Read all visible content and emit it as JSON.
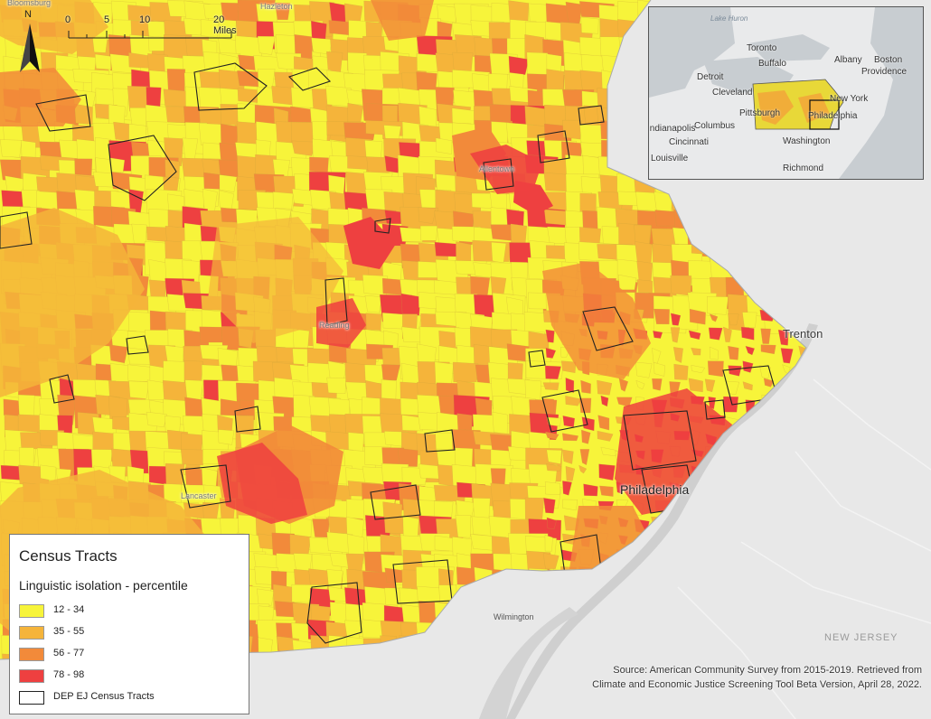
{
  "legend": {
    "title": "Census Tracts",
    "subtitle": "Linguistic isolation - percentile",
    "classes": [
      {
        "label": "12 - 34",
        "color": "#f7f43a"
      },
      {
        "label": "35 - 55",
        "color": "#f5b43a"
      },
      {
        "label": "56 - 77",
        "color": "#f28a3a"
      },
      {
        "label": "78 - 98",
        "color": "#ee4040"
      }
    ],
    "outline_label": "DEP EJ Census Tracts"
  },
  "scalebar": {
    "ticks": [
      "0",
      "5",
      "10",
      "20 Miles"
    ]
  },
  "north_arrow": {
    "label": "N",
    "icon": "north-arrow-icon"
  },
  "places": {
    "philadelphia": "Philadelphia",
    "trenton": "Trenton",
    "wilmington": "Wilmington",
    "allentown": "Allentown",
    "reading": "Reading",
    "lancaster": "Lancaster",
    "hazleton": "Hazleton",
    "bloomsburg": "Bloomsburg",
    "new_jersey": "NEW JERSEY"
  },
  "inset": {
    "labels": [
      "Toronto",
      "Buffalo",
      "Albany",
      "Boston",
      "Providence",
      "Detroit",
      "Cleveland",
      "New York",
      "Pittsburgh",
      "Philadelphia",
      "Columbus",
      "Indianapolis",
      "Cincinnati",
      "Washington",
      "Louisville",
      "Richmond"
    ],
    "lake_label": "Lake Huron"
  },
  "source": {
    "line1": "Source: American Community Survey from 2015-2019. Retrieved from",
    "line2": "Climate and Economic Justice Screening Tool Beta Version, April 28, 2022."
  },
  "colors": {
    "out_of_state": "#e8e8e8",
    "water": "#cfcfcf",
    "tract_boundary": "#c9a23a",
    "ej_outline": "#222222"
  }
}
